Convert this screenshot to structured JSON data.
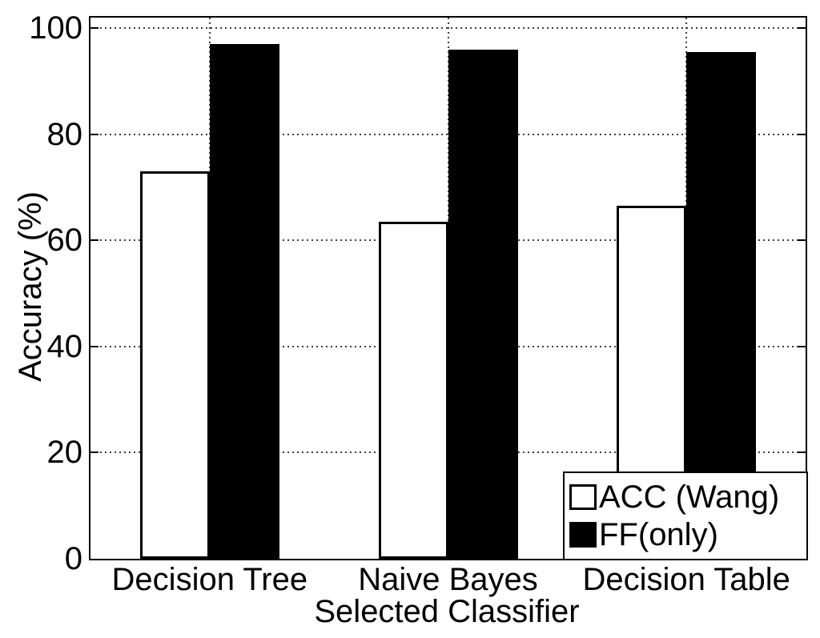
{
  "chart_data": {
    "type": "bar",
    "title": "",
    "categories": [
      "Decision Tree",
      "Naive Bayes",
      "Decision Table"
    ],
    "series": [
      {
        "name": "ACC (Wang)",
        "fill": "#ffffff",
        "edge": "#000000",
        "values": [
          73,
          63.5,
          66.5
        ]
      },
      {
        "name": "FF(only)",
        "fill": "#000000",
        "edge": "#000000",
        "values": [
          97,
          96,
          95.5
        ]
      }
    ],
    "xlabel": "Selected Classifier",
    "ylabel": "Accuracy (%)",
    "ylim": [
      0,
      102
    ],
    "yticks": [
      0,
      20,
      40,
      60,
      80,
      100
    ],
    "grid": true,
    "grid_style": "dotted",
    "legend_position": "lower-right",
    "background_color": "#ffffff",
    "axis_color": "#000000"
  },
  "legend": {
    "items": [
      {
        "label": "ACC (Wang)",
        "swatch": "#ffffff"
      },
      {
        "label": "FF(only)",
        "swatch": "#000000"
      }
    ]
  }
}
